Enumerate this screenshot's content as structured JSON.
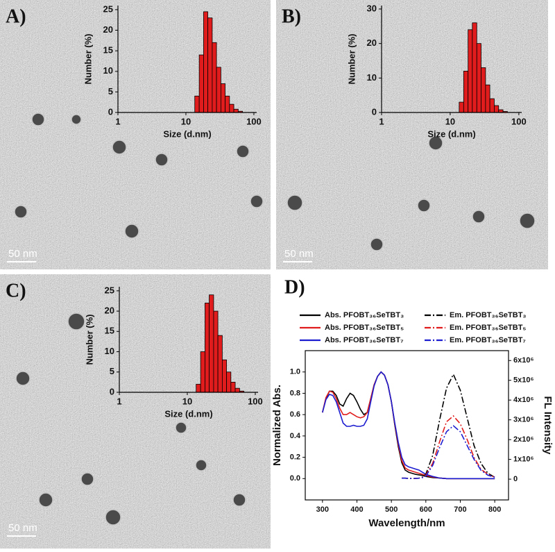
{
  "chart_data": [
    {
      "type": "histogram",
      "panel_label": "A)",
      "scale_bar_label": "50 nm",
      "xlabel": "Size (d.nm)",
      "ylabel": "Number (%)",
      "color": "#e01c1c",
      "x_scale": "log",
      "bins": [
        13.5,
        15.7,
        18.2,
        21.0,
        24.4,
        28.2,
        32.7,
        37.8,
        43.8,
        50.7,
        58.8,
        68.1
      ],
      "values": [
        4,
        14,
        24.5,
        23,
        17,
        11,
        7,
        4,
        2,
        0.8,
        0.3
      ],
      "xlim": [
        1,
        110
      ],
      "xticks": [
        1,
        10,
        100
      ],
      "ylim": [
        0,
        26
      ],
      "yticks": [
        0,
        5,
        10,
        15,
        20,
        25
      ]
    },
    {
      "type": "histogram",
      "panel_label": "B)",
      "scale_bar_label": "50 nm",
      "xlabel": "Size (d.nm)",
      "ylabel": "Number (%)",
      "color": "#e01c1c",
      "x_scale": "log",
      "bins": [
        13.5,
        15.7,
        18.2,
        21.0,
        24.4,
        28.2,
        32.7,
        37.8,
        43.8,
        50.7,
        58.8,
        68.1
      ],
      "values": [
        3,
        12,
        24,
        26,
        20,
        13,
        8,
        4,
        2,
        0.8,
        0.3
      ],
      "xlim": [
        1,
        110
      ],
      "xticks": [
        1,
        10,
        100
      ],
      "ylim": [
        0,
        31
      ],
      "yticks": [
        0,
        10,
        20,
        30
      ]
    },
    {
      "type": "histogram",
      "panel_label": "C)",
      "scale_bar_label": "50 nm",
      "xlabel": "Size (d.nm)",
      "ylabel": "Number (%)",
      "color": "#e01c1c",
      "x_scale": "log",
      "bins": [
        13.5,
        15.7,
        18.2,
        21.0,
        24.4,
        28.2,
        32.7,
        37.8,
        43.8,
        50.7,
        58.8,
        68.1
      ],
      "values": [
        2,
        10,
        22,
        24,
        20,
        14,
        8,
        5,
        2.5,
        1,
        0.3
      ],
      "xlim": [
        1,
        110
      ],
      "xticks": [
        1,
        10,
        100
      ],
      "ylim": [
        0,
        26
      ],
      "yticks": [
        0,
        5,
        10,
        15,
        20,
        25
      ]
    },
    {
      "type": "line",
      "panel_label": "D)",
      "xlabel": "Wavelength/nm",
      "ylabel": "Normalized Abs.",
      "y2label": "FL Intensity",
      "xlim": [
        250,
        840
      ],
      "xticks": [
        300,
        400,
        500,
        600,
        700,
        800
      ],
      "ylim": [
        -0.2,
        1.2
      ],
      "yticks": [
        {
          "value": 0,
          "label": "0.0"
        },
        0.2,
        0.4,
        0.6,
        0.8,
        {
          "value": 1,
          "label": "1.0"
        }
      ],
      "y2lim": [
        -1050000,
        6500000
      ],
      "y2ticks": [
        0,
        {
          "value": 1000000,
          "label": "1x10⁶"
        },
        {
          "value": 2000000,
          "label": "2x10⁶"
        },
        {
          "value": 3000000,
          "label": "3x10⁶"
        },
        {
          "value": 4000000,
          "label": "4x10⁶"
        },
        {
          "value": 5000000,
          "label": "5x10⁶"
        },
        {
          "value": 6000000,
          "label": "6x10⁶"
        }
      ],
      "x": [
        300,
        310,
        320,
        330,
        340,
        350,
        360,
        370,
        380,
        390,
        400,
        410,
        420,
        430,
        440,
        450,
        460,
        470,
        480,
        490,
        500,
        510,
        520,
        530,
        540,
        550,
        560,
        570,
        580,
        590,
        600,
        620,
        640,
        660,
        680,
        700,
        720,
        740,
        760,
        780,
        800
      ],
      "series": [
        {
          "name": "Abs. PFOBT₃₆SeTBT₃",
          "color": "#000000",
          "dash": "solid",
          "values": [
            0.62,
            0.75,
            0.82,
            0.82,
            0.78,
            0.7,
            0.68,
            0.75,
            0.8,
            0.78,
            0.72,
            0.65,
            0.6,
            0.62,
            0.75,
            0.88,
            0.96,
            1.0,
            0.97,
            0.88,
            0.72,
            0.5,
            0.3,
            0.15,
            0.08,
            0.06,
            0.05,
            0.04,
            0.035,
            0.03,
            0.02,
            0.01,
            0.005,
            0,
            0,
            0,
            0,
            0,
            0,
            0,
            0
          ]
        },
        {
          "name": "Abs. PFOBT₃₆SeTBT₅",
          "color": "#e01c1c",
          "dash": "solid",
          "values": [
            0.62,
            0.76,
            0.82,
            0.81,
            0.75,
            0.66,
            0.6,
            0.6,
            0.62,
            0.6,
            0.58,
            0.57,
            0.58,
            0.62,
            0.75,
            0.88,
            0.96,
            1.0,
            0.97,
            0.88,
            0.72,
            0.51,
            0.32,
            0.17,
            0.1,
            0.08,
            0.07,
            0.06,
            0.05,
            0.04,
            0.03,
            0.015,
            0.005,
            0,
            0,
            0,
            0,
            0,
            0,
            0,
            0
          ]
        },
        {
          "name": "Abs. PFOBT₃₆SeTBT₇",
          "color": "#1c1cd0",
          "dash": "solid",
          "values": [
            0.62,
            0.74,
            0.79,
            0.78,
            0.72,
            0.62,
            0.52,
            0.49,
            0.49,
            0.5,
            0.49,
            0.49,
            0.5,
            0.56,
            0.72,
            0.87,
            0.96,
            1.0,
            0.97,
            0.88,
            0.72,
            0.52,
            0.34,
            0.2,
            0.13,
            0.11,
            0.1,
            0.09,
            0.08,
            0.06,
            0.04,
            0.02,
            0.005,
            0,
            0,
            0,
            0,
            0,
            0,
            0,
            0
          ]
        },
        {
          "name": "Em. PFOBT₃₆SeTBT₃",
          "color": "#000000",
          "dash": "dashdot",
          "axis": "y2",
          "values": [
            null,
            null,
            null,
            null,
            null,
            null,
            null,
            null,
            null,
            null,
            null,
            null,
            null,
            null,
            null,
            null,
            null,
            null,
            null,
            null,
            null,
            null,
            null,
            50000,
            50000,
            40000,
            30000,
            40000,
            50000,
            100000,
            250000,
            1200000,
            3000000,
            4600000,
            5300000,
            4500000,
            3100000,
            1700000,
            800000,
            300000,
            100000
          ]
        },
        {
          "name": "Em. PFOBT₃₆SeTBT₅",
          "color": "#e01c1c",
          "dash": "dashdot",
          "axis": "y2",
          "values": [
            null,
            null,
            null,
            null,
            null,
            null,
            null,
            null,
            null,
            null,
            null,
            null,
            null,
            null,
            null,
            null,
            null,
            null,
            null,
            null,
            null,
            null,
            null,
            50000,
            50000,
            40000,
            30000,
            40000,
            50000,
            90000,
            200000,
            800000,
            1900000,
            2900000,
            3200000,
            2800000,
            2000000,
            1100000,
            500000,
            250000,
            100000
          ]
        },
        {
          "name": "Em. PFOBT₃₆SeTBT₇",
          "color": "#1c1cd0",
          "dash": "dashdot",
          "axis": "y2",
          "values": [
            null,
            null,
            null,
            null,
            null,
            null,
            null,
            null,
            null,
            null,
            null,
            null,
            null,
            null,
            null,
            null,
            null,
            null,
            null,
            null,
            null,
            null,
            null,
            50000,
            50000,
            40000,
            30000,
            40000,
            50000,
            80000,
            150000,
            700000,
            1600000,
            2400000,
            2700000,
            2400000,
            1700000,
            1000000,
            450000,
            200000,
            100000
          ]
        }
      ]
    }
  ]
}
